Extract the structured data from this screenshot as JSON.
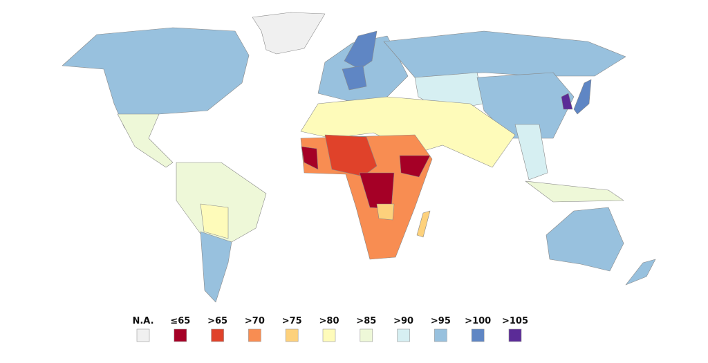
{
  "legend": {
    "items": [
      {
        "label": "N.A.",
        "color": "#f0f0f0"
      },
      {
        "label": "≤65",
        "color": "#a50026"
      },
      {
        "label": ">65",
        "color": "#e0422a"
      },
      {
        "label": ">70",
        "color": "#f88d52"
      },
      {
        "label": ">75",
        "color": "#fdd17c"
      },
      {
        "label": ">80",
        "color": "#fefbba"
      },
      {
        "label": ">85",
        "color": "#eef8d8"
      },
      {
        "label": ">90",
        "color": "#d6eff2"
      },
      {
        "label": ">95",
        "color": "#98c1de"
      },
      {
        "label": ">100",
        "color": "#5f86c4"
      },
      {
        "label": ">105",
        "color": "#5b2b97"
      }
    ]
  }
}
